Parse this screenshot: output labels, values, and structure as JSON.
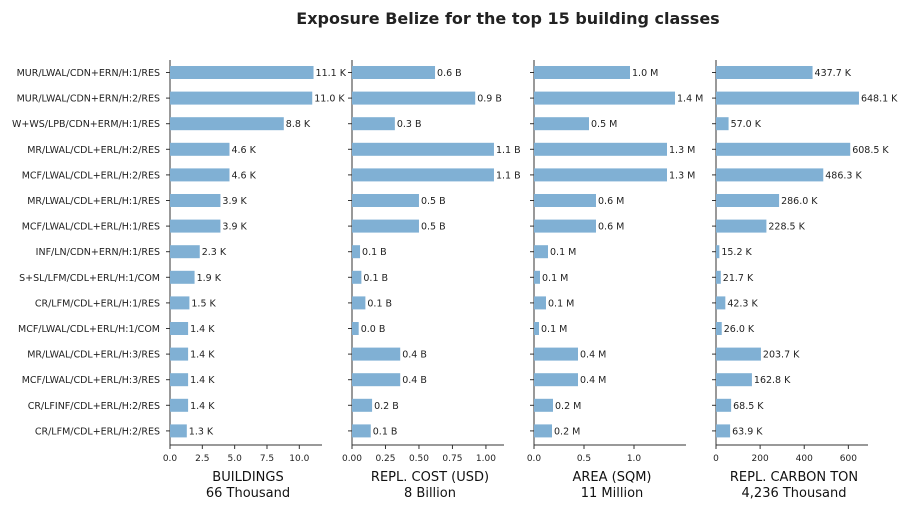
{
  "title": "Exposure Belize for the top 15 building classes",
  "bar_color": "#80b0d4",
  "chart_data": [
    {
      "type": "bar",
      "orientation": "horizontal",
      "title": "Exposure Belize for the top 15 building classes",
      "categories": [
        "MUR/LWAL/CDN+ERN/H:1/RES",
        "MUR/LWAL/CDN+ERN/H:2/RES",
        "W+WS/LPB/CDN+ERM/H:1/RES",
        "MR/LWAL/CDL+ERL/H:2/RES",
        "MCF/LWAL/CDL+ERL/H:2/RES",
        "MR/LWAL/CDL+ERL/H:1/RES",
        "MCF/LWAL/CDL+ERL/H:1/RES",
        "INF/LN/CDN+ERN/H:1/RES",
        "S+SL/LFM/CDL+ERL/H:1/COM",
        "CR/LFM/CDL+ERL/H:1/RES",
        "MCF/LWAL/CDL+ERL/H:1/COM",
        "MR/LWAL/CDL+ERL/H:3/RES",
        "MCF/LWAL/CDL+ERL/H:3/RES",
        "CR/LFINF/CDL+ERL/H:2/RES",
        "CR/LFM/CDL+ERL/H:2/RES"
      ],
      "xlabel": "BUILDINGS",
      "xsublabel": "66 Thousand",
      "xlim": [
        0,
        11.6
      ],
      "xticks": [
        0,
        2.5,
        5,
        7.5,
        10
      ],
      "xtick_labels": [
        "0.0",
        "2.5",
        "5.0",
        "7.5",
        "10.0"
      ],
      "values": [
        11.1,
        11.0,
        8.8,
        4.6,
        4.6,
        3.9,
        3.9,
        2.3,
        1.9,
        1.5,
        1.4,
        1.4,
        1.4,
        1.4,
        1.3
      ],
      "value_labels": [
        "11.1 K",
        "11.0 K",
        "8.8 K",
        "4.6 K",
        "4.6 K",
        "3.9 K",
        "3.9 K",
        "2.3 K",
        "1.9 K",
        "1.5 K",
        "1.4 K",
        "1.4 K",
        "1.4 K",
        "1.4 K",
        "1.3 K"
      ]
    },
    {
      "type": "bar",
      "orientation": "horizontal",
      "xlabel": "REPL. COST (USD)",
      "xsublabel": "8 Billion",
      "xlim": [
        0,
        1.12
      ],
      "xticks": [
        0,
        0.25,
        0.5,
        0.75,
        1.0
      ],
      "xtick_labels": [
        "0.00",
        "0.25",
        "0.50",
        "0.75",
        "1.00"
      ],
      "values": [
        0.62,
        0.92,
        0.32,
        1.06,
        1.06,
        0.5,
        0.5,
        0.06,
        0.07,
        0.1,
        0.05,
        0.36,
        0.36,
        0.15,
        0.14
      ],
      "value_labels": [
        "0.6 B",
        "0.9 B",
        "0.3 B",
        "1.1 B",
        "1.1 B",
        "0.5 B",
        "0.5 B",
        "0.1 B",
        "0.1 B",
        "0.1 B",
        "0.0 B",
        "0.4 B",
        "0.4 B",
        "0.2 B",
        "0.1 B"
      ]
    },
    {
      "type": "bar",
      "orientation": "horizontal",
      "xlabel": "AREA (SQM)",
      "xsublabel": "11 Million",
      "xlim": [
        0,
        1.5
      ],
      "xticks": [
        0,
        0.5,
        1.0
      ],
      "xtick_labels": [
        "0.0",
        "0.5",
        "1.0"
      ],
      "values": [
        0.96,
        1.41,
        0.55,
        1.33,
        1.33,
        0.62,
        0.62,
        0.14,
        0.06,
        0.12,
        0.05,
        0.44,
        0.44,
        0.19,
        0.18
      ],
      "value_labels": [
        "1.0 M",
        "1.4 M",
        "0.5 M",
        "1.3 M",
        "1.3 M",
        "0.6 M",
        "0.6 M",
        "0.1 M",
        "0.1 M",
        "0.1 M",
        "0.1 M",
        "0.4 M",
        "0.4 M",
        "0.2 M",
        "0.2 M"
      ]
    },
    {
      "type": "bar",
      "orientation": "horizontal",
      "xlabel": "REPL. CARBON TON",
      "xsublabel": "4,236 Thousand",
      "xlim": [
        0,
        680
      ],
      "xticks": [
        0,
        200,
        400,
        600
      ],
      "xtick_labels": [
        "0",
        "200",
        "400",
        "600"
      ],
      "values": [
        437.7,
        648.1,
        57.0,
        608.5,
        486.3,
        286.0,
        228.5,
        15.2,
        21.7,
        42.3,
        26.0,
        203.7,
        162.8,
        68.5,
        63.9
      ],
      "value_labels": [
        "437.7 K",
        "648.1 K",
        "57.0 K",
        "608.5 K",
        "486.3 K",
        "286.0 K",
        "228.5 K",
        "15.2 K",
        "21.7 K",
        "42.3 K",
        "26.0 K",
        "203.7 K",
        "162.8 K",
        "68.5 K",
        "63.9 K"
      ]
    }
  ]
}
